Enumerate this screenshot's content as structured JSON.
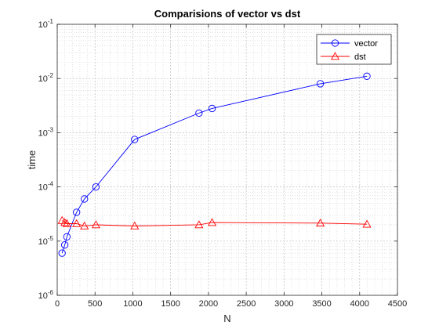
{
  "chart_data": {
    "type": "line",
    "title": "Comparisions of vector vs dst",
    "xlabel": "N",
    "ylabel": "time",
    "xlim": [
      0,
      4500
    ],
    "ylim": [
      1e-06,
      0.1
    ],
    "yscale": "log",
    "x_ticks": [
      0,
      500,
      1000,
      1500,
      2000,
      2500,
      3000,
      3500,
      4000,
      4500
    ],
    "y_ticks": [
      {
        "base": "10",
        "exp": "-6",
        "value": 1e-06
      },
      {
        "base": "10",
        "exp": "-5",
        "value": 1e-05
      },
      {
        "base": "10",
        "exp": "-4",
        "value": 0.0001
      },
      {
        "base": "10",
        "exp": "-3",
        "value": 0.001
      },
      {
        "base": "10",
        "exp": "-2",
        "value": 0.01
      },
      {
        "base": "10",
        "exp": "-1",
        "value": 0.1
      }
    ],
    "grid": true,
    "minor_grid": true,
    "legend_position": "top-right",
    "series": [
      {
        "name": "vector",
        "color": "#0000ff",
        "marker": "circle",
        "x": [
          64,
          100,
          128,
          256,
          360,
          512,
          1024,
          1875,
          2048,
          3480,
          4096
        ],
        "y": [
          6e-06,
          8.5e-06,
          1.2e-05,
          3.4e-05,
          6e-05,
          0.0001,
          0.00075,
          0.0023,
          0.0028,
          0.008,
          0.011
        ]
      },
      {
        "name": "dst",
        "color": "#ff0000",
        "marker": "triangle",
        "x": [
          64,
          100,
          128,
          256,
          360,
          512,
          1024,
          1875,
          2048,
          3480,
          4096
        ],
        "y": [
          2.4e-05,
          2.2e-05,
          2.1e-05,
          2.1e-05,
          1.9e-05,
          2e-05,
          1.9e-05,
          2e-05,
          2.2e-05,
          2.15e-05,
          2.05e-05
        ]
      }
    ]
  }
}
